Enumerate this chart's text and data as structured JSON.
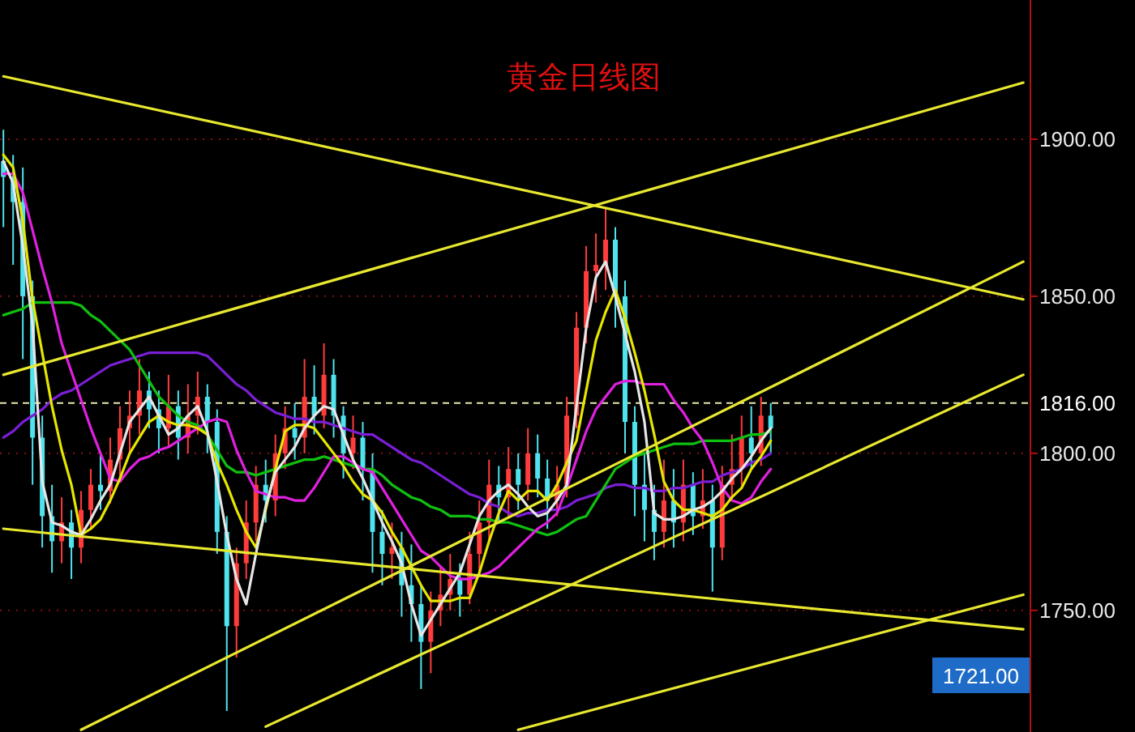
{
  "chart_data": {
    "type": "candlestick",
    "title": "黄金日线图",
    "categories": [
      null,
      null,
      null,
      null,
      null,
      null,
      null,
      null,
      null,
      null,
      null,
      null,
      null,
      null,
      null,
      null,
      null,
      null,
      null,
      null,
      null,
      null,
      null,
      null,
      null,
      null,
      null,
      null,
      null,
      null,
      null,
      null,
      null,
      null,
      null,
      null,
      null,
      null,
      null,
      null,
      null,
      null,
      null,
      null,
      null,
      null,
      null,
      null,
      null,
      null,
      null,
      null,
      null,
      null,
      null,
      null,
      null,
      null,
      null,
      null,
      null,
      null,
      null,
      null,
      null,
      null,
      null,
      null,
      null,
      null,
      null,
      null,
      null,
      null,
      null,
      null,
      null,
      null,
      null,
      null,
      null,
      null,
      null,
      null,
      null,
      null,
      null,
      null,
      null,
      null,
      null,
      null,
      null,
      null,
      null,
      null,
      null,
      null,
      null,
      null,
      null,
      null,
      null,
      null,
      null,
      null
    ],
    "ohlc": [
      [
        1893,
        1903,
        1872,
        1888
      ],
      [
        1888,
        1895,
        1860,
        1880
      ],
      [
        1880,
        1891,
        1830,
        1850
      ],
      [
        1850,
        1855,
        1790,
        1805
      ],
      [
        1805,
        1812,
        1770,
        1780
      ],
      [
        1780,
        1790,
        1762,
        1772
      ],
      [
        1772,
        1786,
        1765,
        1778
      ],
      [
        1778,
        1782,
        1760,
        1770
      ],
      [
        1770,
        1788,
        1765,
        1782
      ],
      [
        1782,
        1795,
        1776,
        1790
      ],
      [
        1790,
        1800,
        1782,
        1788
      ],
      [
        1788,
        1805,
        1784,
        1798
      ],
      [
        1798,
        1815,
        1792,
        1808
      ],
      [
        1808,
        1820,
        1800,
        1812
      ],
      [
        1812,
        1830,
        1806,
        1820
      ],
      [
        1820,
        1826,
        1808,
        1814
      ],
      [
        1814,
        1820,
        1800,
        1808
      ],
      [
        1808,
        1825,
        1802,
        1815
      ],
      [
        1815,
        1820,
        1798,
        1805
      ],
      [
        1805,
        1822,
        1800,
        1812
      ],
      [
        1812,
        1826,
        1806,
        1818
      ],
      [
        1818,
        1822,
        1800,
        1810
      ],
      [
        1810,
        1814,
        1768,
        1775
      ],
      [
        1775,
        1780,
        1718,
        1745
      ],
      [
        1745,
        1770,
        1735,
        1765
      ],
      [
        1765,
        1785,
        1760,
        1778
      ],
      [
        1778,
        1796,
        1772,
        1790
      ],
      [
        1790,
        1798,
        1778,
        1785
      ],
      [
        1785,
        1806,
        1780,
        1800
      ],
      [
        1800,
        1815,
        1795,
        1808
      ],
      [
        1808,
        1816,
        1798,
        1805
      ],
      [
        1805,
        1830,
        1800,
        1818
      ],
      [
        1818,
        1828,
        1806,
        1812
      ],
      [
        1812,
        1835,
        1808,
        1825
      ],
      [
        1825,
        1830,
        1805,
        1812
      ],
      [
        1812,
        1815,
        1792,
        1800
      ],
      [
        1800,
        1812,
        1795,
        1805
      ],
      [
        1805,
        1810,
        1785,
        1795
      ],
      [
        1795,
        1800,
        1762,
        1775
      ],
      [
        1775,
        1782,
        1758,
        1768
      ],
      [
        1768,
        1778,
        1760,
        1770
      ],
      [
        1770,
        1775,
        1748,
        1758
      ],
      [
        1758,
        1771,
        1740,
        1752
      ],
      [
        1752,
        1758,
        1725,
        1740
      ],
      [
        1740,
        1756,
        1730,
        1750
      ],
      [
        1750,
        1764,
        1745,
        1755
      ],
      [
        1755,
        1768,
        1750,
        1760
      ],
      [
        1760,
        1765,
        1748,
        1755
      ],
      [
        1755,
        1775,
        1752,
        1768
      ],
      [
        1768,
        1785,
        1762,
        1778
      ],
      [
        1778,
        1798,
        1772,
        1790
      ],
      [
        1790,
        1796,
        1778,
        1786
      ],
      [
        1786,
        1802,
        1780,
        1795
      ],
      [
        1795,
        1800,
        1782,
        1790
      ],
      [
        1790,
        1808,
        1785,
        1800
      ],
      [
        1800,
        1806,
        1786,
        1792
      ],
      [
        1792,
        1798,
        1776,
        1785
      ],
      [
        1785,
        1796,
        1780,
        1790
      ],
      [
        1790,
        1818,
        1786,
        1812
      ],
      [
        1812,
        1845,
        1808,
        1840
      ],
      [
        1840,
        1866,
        1835,
        1858
      ],
      [
        1858,
        1870,
        1848,
        1860
      ],
      [
        1860,
        1878,
        1852,
        1868
      ],
      [
        1868,
        1872,
        1840,
        1850
      ],
      [
        1850,
        1855,
        1800,
        1810
      ],
      [
        1810,
        1815,
        1780,
        1790
      ],
      [
        1790,
        1800,
        1772,
        1782
      ],
      [
        1782,
        1790,
        1766,
        1775
      ],
      [
        1775,
        1798,
        1770,
        1785
      ],
      [
        1785,
        1795,
        1770,
        1778
      ],
      [
        1778,
        1798,
        1772,
        1790
      ],
      [
        1790,
        1794,
        1774,
        1780
      ],
      [
        1780,
        1795,
        1776,
        1785
      ],
      [
        1785,
        1790,
        1756,
        1770
      ],
      [
        1770,
        1796,
        1766,
        1790
      ],
      [
        1790,
        1806,
        1785,
        1795
      ],
      [
        1795,
        1812,
        1790,
        1805
      ],
      [
        1805,
        1815,
        1795,
        1800
      ],
      [
        1800,
        1818,
        1796,
        1812
      ],
      [
        1812,
        1816,
        1800,
        1808
      ],
      null,
      null,
      null,
      null,
      null,
      null,
      null,
      null,
      null,
      null,
      null,
      null,
      null,
      null,
      null,
      null,
      null,
      null,
      null,
      null,
      null,
      null,
      null,
      null,
      null,
      null
    ],
    "colors": [
      "#4fe3ee",
      "#4fe3ee",
      "#4fe3ee",
      "#4fe3ee",
      "#4fe3ee",
      "#4fe3ee",
      "#ff3b3b",
      "#4fe3ee",
      "#ff3b3b",
      "#ff3b3b",
      "#4fe3ee",
      "#ff3b3b",
      "#ff3b3b",
      "#ff3b3b",
      "#ff3b3b",
      "#4fe3ee",
      "#4fe3ee",
      "#ff3b3b",
      "#4fe3ee",
      "#ff3b3b",
      "#ff3b3b",
      "#4fe3ee",
      "#4fe3ee",
      "#4fe3ee",
      "#ff3b3b",
      "#ff3b3b",
      "#ff3b3b",
      "#4fe3ee",
      "#ff3b3b",
      "#ff3b3b",
      "#4fe3ee",
      "#ff3b3b",
      "#4fe3ee",
      "#ff3b3b",
      "#4fe3ee",
      "#4fe3ee",
      "#ff3b3b",
      "#4fe3ee",
      "#4fe3ee",
      "#4fe3ee",
      "#ff3b3b",
      "#4fe3ee",
      "#4fe3ee",
      "#4fe3ee",
      "#ff3b3b",
      "#ff3b3b",
      "#ff3b3b",
      "#4fe3ee",
      "#ff3b3b",
      "#ff3b3b",
      "#ff3b3b",
      "#4fe3ee",
      "#ff3b3b",
      "#4fe3ee",
      "#ff3b3b",
      "#4fe3ee",
      "#4fe3ee",
      "#ff3b3b",
      "#ff3b3b",
      "#ff3b3b",
      "#ff3b3b",
      "#ff3b3b",
      "#ff3b3b",
      "#4fe3ee",
      "#4fe3ee",
      "#4fe3ee",
      "#4fe3ee",
      "#4fe3ee",
      "#ff3b3b",
      "#4fe3ee",
      "#ff3b3b",
      "#4fe3ee",
      "#ff3b3b",
      "#4fe3ee",
      "#ff3b3b",
      "#ff3b3b",
      "#ff3b3b",
      "#4fe3ee",
      "#ff3b3b",
      "#4fe3ee",
      null,
      null,
      null,
      null,
      null,
      null,
      null,
      null,
      null,
      null,
      null,
      null,
      null,
      null,
      null,
      null,
      null,
      null,
      null,
      null,
      null,
      null,
      null,
      null,
      null,
      null
    ],
    "series": [
      {
        "type": "line",
        "color": "#7a1fd6",
        "values": [
          1805,
          1807,
          1810,
          1812,
          1814,
          1817,
          1819,
          1820,
          1822,
          1824,
          1826,
          1828,
          1829,
          1830,
          1831,
          1832,
          1832,
          1832,
          1832,
          1832,
          1832,
          1831,
          1828,
          1825,
          1822,
          1820,
          1817,
          1815,
          1813,
          1812,
          1811,
          1811,
          1810,
          1810,
          1809,
          1808,
          1807,
          1806,
          1806,
          1804,
          1802,
          1800,
          1798,
          1797,
          1795,
          1793,
          1791,
          1789,
          1787,
          1786,
          1784,
          1783,
          1781,
          1780,
          1781,
          1781,
          1782,
          1782,
          1783,
          1785,
          1786,
          1787,
          1789,
          1790,
          1790,
          1789,
          1789,
          1788,
          1788,
          1789,
          1789,
          1790,
          1791,
          1791,
          1793,
          1794,
          1795,
          1797,
          1798,
          1800,
          null,
          null,
          null,
          null,
          null,
          null,
          null,
          null,
          null,
          null,
          null,
          null,
          null,
          null,
          null,
          null,
          null,
          null,
          null,
          null,
          null,
          null,
          null,
          null,
          null,
          null
        ]
      },
      {
        "type": "line",
        "color": "#10c010",
        "values": [
          1844,
          1845,
          1846,
          1848,
          1848,
          1848,
          1848,
          1848,
          1847,
          1844,
          1842,
          1839,
          1836,
          1833,
          1828,
          1823,
          1818,
          1815,
          1812,
          1810,
          1809,
          1806,
          1801,
          1796,
          1794,
          1794,
          1793,
          1794,
          1795,
          1796,
          1797,
          1798,
          1798,
          1799,
          1798,
          1797,
          1796,
          1795,
          1795,
          1793,
          1790,
          1788,
          1786,
          1785,
          1783,
          1782,
          1780,
          1780,
          1780,
          1779,
          1779,
          1778,
          1778,
          1777,
          1776,
          1775,
          1774,
          1775,
          1777,
          1779,
          1780,
          1785,
          1790,
          1795,
          1797,
          1799,
          1800,
          1801,
          1802,
          1803,
          1803,
          1803,
          1804,
          1804,
          1804,
          1804,
          1805,
          1806,
          1806,
          1807,
          null,
          null,
          null,
          null,
          null,
          null,
          null,
          null,
          null,
          null,
          null,
          null,
          null,
          null,
          null,
          null,
          null,
          null,
          null,
          null,
          null,
          null,
          null,
          null,
          null,
          null
        ]
      },
      {
        "type": "line",
        "color": "#e020e0",
        "values": [
          1889,
          1889,
          1883,
          1871,
          1859,
          1848,
          1835,
          1826,
          1817,
          1808,
          1800,
          1792,
          1791,
          1795,
          1798,
          1799,
          1801,
          1802,
          1804,
          1806,
          1808,
          1810,
          1811,
          1810,
          1801,
          1794,
          1788,
          1787,
          1786,
          1786,
          1785,
          1785,
          1789,
          1794,
          1799,
          1799,
          1797,
          1795,
          1794,
          1789,
          1784,
          1779,
          1774,
          1769,
          1767,
          1764,
          1761,
          1760,
          1760,
          1761,
          1762,
          1764,
          1767,
          1770,
          1773,
          1776,
          1778,
          1781,
          1789,
          1798,
          1807,
          1814,
          1818,
          1822,
          1823,
          1823,
          1822,
          1822,
          1822,
          1817,
          1813,
          1808,
          1804,
          1797,
          1789,
          1785,
          1784,
          1786,
          1791,
          1795,
          null,
          null,
          null,
          null,
          null,
          null,
          null,
          null,
          null,
          null,
          null,
          null,
          null,
          null,
          null,
          null,
          null,
          null,
          null,
          null,
          null,
          null,
          null,
          null,
          null,
          null
        ]
      },
      {
        "type": "line",
        "color": "#e6e600",
        "values": [
          1895,
          1891,
          1874,
          1849,
          1832,
          1815,
          1801,
          1790,
          1774,
          1776,
          1779,
          1785,
          1792,
          1800,
          1805,
          1810,
          1812,
          1810,
          1809,
          1809,
          1808,
          1806,
          1797,
          1790,
          1782,
          1775,
          1770,
          1782,
          1795,
          1807,
          1809,
          1809,
          1808,
          1804,
          1800,
          1796,
          1791,
          1787,
          1785,
          1781,
          1775,
          1770,
          1764,
          1758,
          1753,
          1753,
          1753,
          1754,
          1754,
          1762,
          1772,
          1781,
          1788,
          1785,
          1788,
          1788,
          1785,
          1790,
          1797,
          1804,
          1820,
          1836,
          1845,
          1852,
          1843,
          1832,
          1820,
          1806,
          1791,
          1785,
          1782,
          1782,
          1781,
          1780,
          1782,
          1786,
          1789,
          1795,
          1799,
          1804,
          null,
          null,
          null,
          null,
          null,
          null,
          null,
          null,
          null,
          null,
          null,
          null,
          null,
          null,
          null,
          null,
          null,
          null,
          null,
          null,
          null,
          null,
          null,
          null,
          null,
          null
        ]
      },
      {
        "type": "line",
        "color": "#e6e6e6",
        "values": [
          1893,
          1886,
          1866,
          1841,
          1791,
          1778,
          1777,
          1775,
          1774,
          1779,
          1785,
          1790,
          1800,
          1810,
          1814,
          1818,
          1812,
          1806,
          1808,
          1812,
          1815,
          1807,
          1791,
          1774,
          1760,
          1752,
          1768,
          1783,
          1794,
          1798,
          1802,
          1808,
          1812,
          1815,
          1814,
          1806,
          1798,
          1792,
          1785,
          1778,
          1772,
          1765,
          1752,
          1742,
          1747,
          1752,
          1757,
          1762,
          1771,
          1780,
          1785,
          1788,
          1790,
          1787,
          1783,
          1780,
          1781,
          1785,
          1790,
          1815,
          1840,
          1856,
          1861,
          1850,
          1838,
          1826,
          1810,
          1781,
          1779,
          1779,
          1780,
          1782,
          1783,
          1785,
          1788,
          1792,
          1795,
          1799,
          1804,
          1808,
          null,
          null,
          null,
          null,
          null,
          null,
          null,
          null,
          null,
          null,
          null,
          null,
          null,
          null,
          null,
          null,
          null,
          null,
          null,
          null,
          null,
          null,
          null,
          null,
          null,
          null
        ]
      },
      {
        "type": "line",
        "color": "#e8e830",
        "values": [
          1920,
          null,
          null,
          null,
          null,
          null,
          null,
          null,
          null,
          null,
          null,
          null,
          null,
          null,
          null,
          null,
          null,
          null,
          null,
          null,
          null,
          null,
          null,
          null,
          null,
          null,
          null,
          null,
          null,
          null,
          null,
          null,
          null,
          null,
          null,
          null,
          null,
          null,
          null,
          null,
          null,
          null,
          null,
          null,
          null,
          null,
          null,
          null,
          null,
          null,
          null,
          null,
          null,
          null,
          null,
          null,
          null,
          null,
          null,
          null,
          null,
          null,
          null,
          null,
          null,
          null,
          null,
          null,
          null,
          null,
          null,
          null,
          null,
          null,
          null,
          null,
          null,
          null,
          null,
          null,
          null,
          null,
          null,
          null,
          null,
          null,
          null,
          null,
          null,
          null,
          null,
          null,
          null,
          null,
          null,
          null,
          null,
          null,
          null,
          null,
          null,
          null,
          null,
          null,
          null,
          1849
        ]
      },
      {
        "type": "line",
        "color": "#e8e830",
        "values": [
          1825,
          null,
          null,
          null,
          null,
          null,
          null,
          null,
          null,
          null,
          null,
          null,
          null,
          null,
          null,
          null,
          null,
          null,
          null,
          null,
          null,
          null,
          null,
          null,
          null,
          null,
          null,
          null,
          null,
          null,
          null,
          null,
          null,
          null,
          null,
          null,
          null,
          null,
          null,
          null,
          null,
          null,
          null,
          null,
          null,
          null,
          null,
          null,
          null,
          null,
          null,
          null,
          null,
          null,
          null,
          null,
          null,
          null,
          null,
          null,
          null,
          null,
          null,
          null,
          null,
          null,
          null,
          null,
          null,
          null,
          null,
          null,
          null,
          null,
          null,
          null,
          null,
          null,
          null,
          null,
          null,
          null,
          null,
          null,
          null,
          null,
          null,
          null,
          null,
          null,
          null,
          null,
          null,
          null,
          null,
          null,
          null,
          null,
          null,
          null,
          null,
          null,
          null,
          null,
          null,
          1918
        ]
      },
      {
        "type": "line",
        "color": "#e8e830",
        "values": [
          1776,
          null,
          null,
          null,
          null,
          null,
          null,
          null,
          null,
          null,
          null,
          null,
          null,
          null,
          null,
          null,
          null,
          null,
          null,
          null,
          null,
          null,
          null,
          null,
          null,
          null,
          null,
          null,
          null,
          null,
          null,
          null,
          null,
          null,
          null,
          null,
          null,
          null,
          null,
          null,
          null,
          null,
          null,
          null,
          null,
          null,
          null,
          null,
          null,
          null,
          null,
          null,
          null,
          null,
          null,
          null,
          null,
          null,
          null,
          null,
          null,
          null,
          null,
          null,
          null,
          null,
          null,
          null,
          null,
          null,
          null,
          null,
          null,
          null,
          null,
          null,
          null,
          null,
          null,
          null,
          null,
          null,
          null,
          null,
          null,
          null,
          null,
          null,
          null,
          null,
          null,
          null,
          null,
          null,
          null,
          null,
          null,
          null,
          null,
          null,
          null,
          null,
          null,
          null,
          null,
          1744
        ]
      },
      {
        "type": "line",
        "color": "#e8e830",
        "values": [
          null,
          null,
          null,
          null,
          null,
          null,
          null,
          null,
          1712,
          null,
          null,
          null,
          null,
          null,
          null,
          null,
          null,
          null,
          null,
          null,
          null,
          null,
          null,
          null,
          null,
          null,
          null,
          null,
          null,
          null,
          null,
          null,
          null,
          null,
          null,
          null,
          null,
          null,
          null,
          null,
          null,
          null,
          null,
          null,
          null,
          null,
          null,
          null,
          null,
          null,
          null,
          null,
          null,
          null,
          null,
          null,
          null,
          null,
          null,
          null,
          null,
          null,
          null,
          null,
          null,
          null,
          null,
          null,
          null,
          null,
          null,
          null,
          null,
          null,
          null,
          null,
          null,
          null,
          null,
          null,
          null,
          null,
          null,
          null,
          null,
          null,
          null,
          null,
          null,
          null,
          null,
          null,
          null,
          null,
          null,
          null,
          null,
          null,
          null,
          null,
          null,
          null,
          null,
          null,
          null,
          1861
        ]
      },
      {
        "type": "line",
        "color": "#e8e830",
        "values": [
          null,
          null,
          null,
          null,
          null,
          null,
          null,
          null,
          null,
          null,
          null,
          null,
          null,
          null,
          null,
          null,
          null,
          null,
          null,
          null,
          null,
          null,
          null,
          null,
          null,
          null,
          null,
          1713,
          null,
          null,
          null,
          null,
          null,
          null,
          null,
          null,
          null,
          null,
          null,
          null,
          null,
          null,
          null,
          null,
          null,
          null,
          null,
          null,
          null,
          null,
          null,
          null,
          null,
          null,
          null,
          null,
          null,
          null,
          null,
          null,
          null,
          null,
          null,
          null,
          null,
          null,
          null,
          null,
          null,
          null,
          null,
          null,
          null,
          null,
          null,
          null,
          null,
          null,
          null,
          null,
          null,
          null,
          null,
          null,
          null,
          null,
          null,
          null,
          null,
          null,
          null,
          null,
          null,
          null,
          null,
          null,
          null,
          null,
          null,
          null,
          null,
          null,
          null,
          null,
          null,
          1825
        ]
      },
      {
        "type": "line",
        "color": "#e8e830",
        "values": [
          null,
          null,
          null,
          null,
          null,
          null,
          null,
          null,
          null,
          null,
          null,
          null,
          null,
          null,
          null,
          null,
          null,
          null,
          null,
          null,
          null,
          null,
          null,
          null,
          null,
          null,
          null,
          null,
          null,
          null,
          null,
          null,
          null,
          null,
          null,
          null,
          null,
          null,
          null,
          null,
          null,
          null,
          null,
          null,
          null,
          null,
          null,
          null,
          null,
          null,
          null,
          null,
          null,
          1712,
          null,
          null,
          null,
          null,
          null,
          null,
          null,
          null,
          null,
          null,
          null,
          null,
          null,
          null,
          null,
          null,
          null,
          null,
          null,
          null,
          null,
          null,
          null,
          null,
          null,
          null,
          null,
          null,
          null,
          null,
          null,
          null,
          null,
          null,
          null,
          null,
          null,
          null,
          null,
          null,
          null,
          null,
          null,
          null,
          null,
          null,
          null,
          null,
          null,
          null,
          null,
          1755
        ]
      }
    ],
    "ylim": [
      1711.3,
      1944.3
    ],
    "yticks": [
      {
        "value": 1750,
        "label": "1750.00"
      },
      {
        "value": 1800,
        "label": "1800.00"
      },
      {
        "value": 1850,
        "label": "1850.00"
      },
      {
        "value": 1900,
        "label": "1900.00"
      }
    ],
    "tick_labels": "y",
    "grid": "y",
    "ref_lines": [
      {
        "axis": "y",
        "value": 1816,
        "label": "1816.00",
        "color": "#e8e8b0",
        "line_style": "dashed"
      }
    ],
    "annotations": [
      "1721.00"
    ]
  }
}
